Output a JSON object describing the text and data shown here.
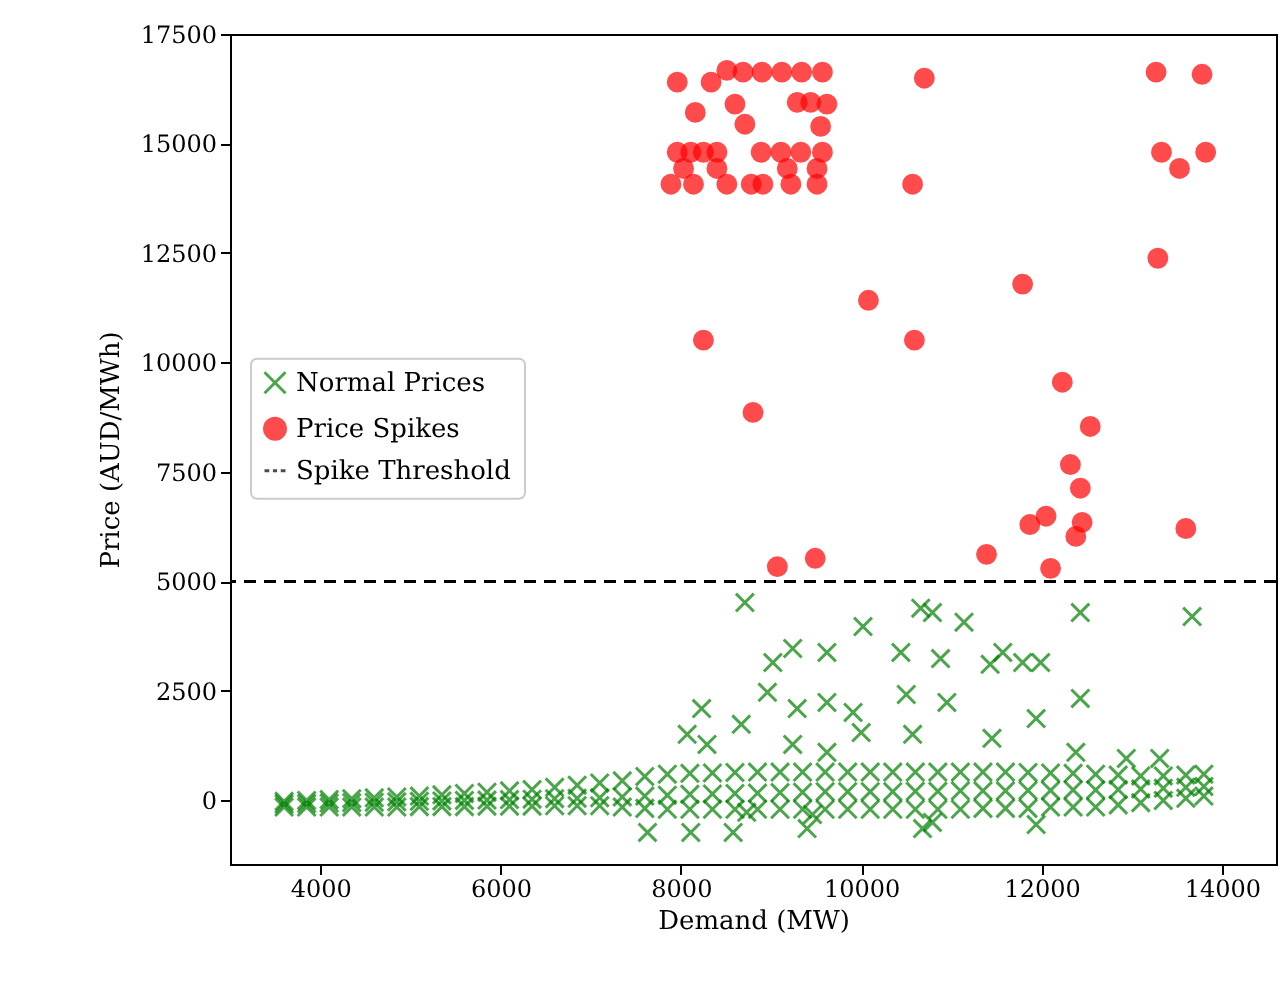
{
  "chart_data": {
    "type": "scatter",
    "xlabel": "Demand (MW)",
    "ylabel": "Price (AUD/MWh)",
    "xlim": [
      3000,
      14600
    ],
    "ylim": [
      -1450,
      17500
    ],
    "xticks": [
      4000,
      6000,
      8000,
      10000,
      12000,
      14000
    ],
    "yticks": [
      0,
      2500,
      5000,
      7500,
      10000,
      12500,
      15000,
      17500
    ],
    "legend": "left",
    "grid": false,
    "series": [
      {
        "name": "Normal Prices",
        "color": "#008000",
        "marker": "cross",
        "x": [
          3600,
          3850,
          4100,
          4350,
          4600,
          4850,
          5100,
          5350,
          5600,
          5850,
          6100,
          6350,
          6600,
          6850,
          7100,
          7350,
          7600,
          7850,
          8100,
          8350,
          8600,
          8850,
          9100,
          9350,
          9600,
          9850,
          10100,
          10350,
          10600,
          10850,
          11100,
          11350,
          11600,
          11850,
          12100,
          12350,
          12600,
          12850,
          13100,
          13350,
          13600,
          13800,
          3600,
          3850,
          4100,
          4350,
          4600,
          4850,
          5100,
          5350,
          5600,
          5850,
          6100,
          6350,
          6600,
          6850,
          7100,
          7350,
          7600,
          7850,
          8100,
          8350,
          8600,
          8850,
          9100,
          9350,
          9600,
          9850,
          10100,
          10350,
          10600,
          10850,
          11100,
          11350,
          11600,
          11850,
          12100,
          12350,
          12600,
          12850,
          13100,
          13350,
          13600,
          13800,
          3600,
          3850,
          4100,
          4350,
          4600,
          4850,
          5100,
          5350,
          5600,
          5850,
          6100,
          6350,
          6600,
          6850,
          7100,
          7350,
          7600,
          7850,
          8100,
          8350,
          8600,
          8850,
          9100,
          9350,
          9600,
          9850,
          10100,
          10350,
          10600,
          10850,
          11100,
          11350,
          11600,
          11850,
          12100,
          12350,
          12600,
          12850,
          13100,
          13350,
          13600,
          13800,
          8710,
          10660,
          10790,
          11140,
          12430,
          13670,
          10020,
          9240,
          9620,
          9020,
          10440,
          10880,
          11570,
          11430,
          11990,
          11790,
          8960,
          9620,
          9290,
          8230,
          12430,
          10950,
          11940,
          9910,
          10500,
          8070,
          8290,
          8670,
          10000,
          11450,
          10570,
          9620,
          9240,
          12380,
          12940,
          13310,
          7630,
          8110,
          8580,
          9400,
          10680,
          11940,
          8730,
          9460,
          10790
        ],
        "values": [
          -150,
          -150,
          -150,
          -150,
          -150,
          -150,
          -140,
          -140,
          -140,
          -130,
          -130,
          -130,
          -120,
          -120,
          -120,
          -150,
          -180,
          -200,
          -200,
          -200,
          -200,
          -200,
          -200,
          -200,
          -200,
          -200,
          -200,
          -200,
          -200,
          -200,
          -200,
          -180,
          -180,
          -180,
          -150,
          -150,
          -150,
          -100,
          -50,
          0,
          50,
          100,
          -80,
          -70,
          -60,
          -50,
          -40,
          -30,
          -20,
          -10,
          0,
          10,
          20,
          30,
          40,
          50,
          60,
          80,
          100,
          120,
          140,
          150,
          160,
          170,
          180,
          190,
          200,
          200,
          200,
          200,
          210,
          210,
          220,
          220,
          220,
          230,
          230,
          240,
          240,
          250,
          260,
          280,
          300,
          320,
          -20,
          0,
          20,
          40,
          60,
          80,
          100,
          130,
          160,
          190,
          220,
          250,
          300,
          350,
          400,
          450,
          550,
          600,
          620,
          630,
          640,
          650,
          650,
          650,
          650,
          650,
          650,
          650,
          650,
          650,
          650,
          650,
          650,
          640,
          630,
          620,
          600,
          580,
          560,
          560,
          580,
          600,
          4520,
          4390,
          4290,
          4070,
          4290,
          4200,
          3970,
          3470,
          3380,
          3150,
          3380,
          3240,
          3380,
          3110,
          3150,
          3150,
          2470,
          2240,
          2100,
          2100,
          2330,
          2240,
          1870,
          2010,
          2420,
          1510,
          1280,
          1740,
          1550,
          1420,
          1510,
          1100,
          1280,
          1100,
          960,
          960,
          -730,
          -730,
          -730,
          -640,
          -640,
          -550,
          -270,
          -320,
          -500
        ]
      },
      {
        "name": "Price Spikes",
        "color": "#ff0000",
        "marker": "circle",
        "x": [
          7960,
          8335,
          8510,
          8690,
          8900,
          9120,
          9340,
          9570,
          9290,
          9620,
          9440,
          8160,
          8600,
          8710,
          9550,
          7960,
          8110,
          8250,
          8400,
          8890,
          9110,
          9330,
          9570,
          8030,
          8400,
          9180,
          9510,
          7890,
          8140,
          8510,
          8780,
          8910,
          9220,
          9510,
          10700,
          10570,
          13270,
          13780,
          13330,
          13530,
          13820,
          13290,
          11790,
          10080,
          8250,
          10590,
          12230,
          8800,
          12540,
          12320,
          12430,
          11870,
          12050,
          12450,
          12380,
          13600,
          11390,
          9490,
          9070,
          12100
        ],
        "values": [
          16400,
          16400,
          16670,
          16630,
          16630,
          16630,
          16630,
          16630,
          15940,
          15900,
          15940,
          15710,
          15900,
          15440,
          15390,
          14800,
          14800,
          14800,
          14800,
          14800,
          14800,
          14800,
          14800,
          14430,
          14430,
          14430,
          14430,
          14070,
          14070,
          14070,
          14070,
          14070,
          14070,
          14070,
          16490,
          14070,
          16630,
          16580,
          14800,
          14430,
          14800,
          12380,
          11790,
          11420,
          10510,
          10510,
          9550,
          8860,
          8540,
          7670,
          7130,
          6300,
          6490,
          6350,
          6030,
          6210,
          5620,
          5530,
          5340,
          5300
        ]
      }
    ],
    "ref_lines": [
      {
        "axis": "y",
        "value": 5000,
        "label": "Spike Threshold",
        "color": "#000000",
        "line_style": "dashed"
      }
    ]
  }
}
